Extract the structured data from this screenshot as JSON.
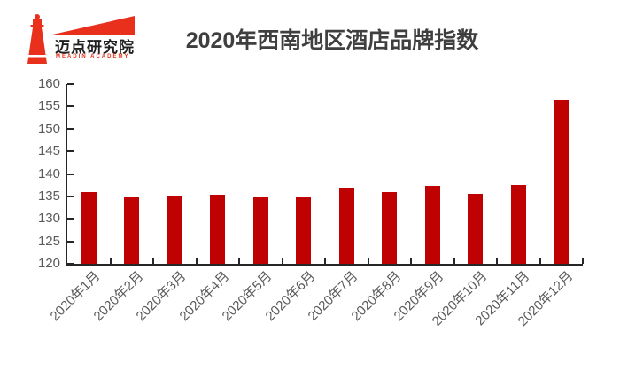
{
  "logo": {
    "name": "迈点研究院",
    "subtitle": "MEADIN ACADEMY",
    "brand_color": "#e8301d"
  },
  "chart_data": {
    "type": "bar",
    "title": "2020年西南地区酒店品牌指数",
    "categories": [
      "2020年1月",
      "2020年2月",
      "2020年3月",
      "2020年4月",
      "2020年5月",
      "2020年6月",
      "2020年7月",
      "2020年8月",
      "2020年9月",
      "2020年10月",
      "2020年11月",
      "2020年12月"
    ],
    "values": [
      135.9,
      135.0,
      135.1,
      135.3,
      134.7,
      134.8,
      137.0,
      136.0,
      137.4,
      135.6,
      137.5,
      156.5
    ],
    "xlabel": "",
    "ylabel": "",
    "ylim": [
      120,
      160
    ],
    "y_tick_step": 5,
    "y_tick_labels": [
      "160",
      "155",
      "150",
      "145",
      "140",
      "135",
      "130",
      "125",
      "120"
    ],
    "grid": false,
    "legend_position": "none",
    "bar_color": "#c00101",
    "axis_color": "#262626",
    "tick_label_color": "#595959",
    "title_color": "#3f3f3f",
    "x_label_rotation_deg": 45
  }
}
